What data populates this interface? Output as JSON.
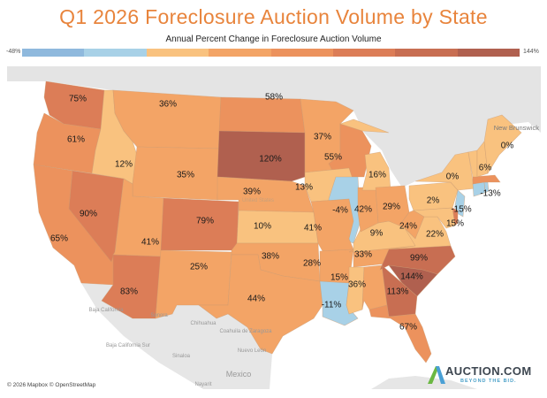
{
  "title": "Q1 2026 Foreclosure Auction Volume by State",
  "legend": {
    "title": "Annual Percent Change in Foreclosure Auction Volume",
    "min_label": "-48%",
    "max_label": "144%",
    "min": -48,
    "max": 144,
    "colors": [
      "#8fb9dd",
      "#a8d1e7",
      "#f9c27f",
      "#f3a466",
      "#ec925d",
      "#dc7d57",
      "#c86e52",
      "#b0604f"
    ]
  },
  "chart_data": {
    "type": "choropleth",
    "unit": "%",
    "values": {
      "WA": 75,
      "OR": 61,
      "CA": 65,
      "NV": 90,
      "ID": 12,
      "MT": 36,
      "WY": 35,
      "UT": 41,
      "AZ": 83,
      "CO": 79,
      "NM": 25,
      "ND": 58,
      "SD": 120,
      "NE": 39,
      "KS": 10,
      "OK": 38,
      "TX": 44,
      "MN": 37,
      "WI": 55,
      "IA": 13,
      "IL": -4,
      "MO": 41,
      "AR": 28,
      "LA": -11,
      "MS": 15,
      "AL": 36,
      "TN": 33,
      "KY": 9,
      "IN": 42,
      "MI": 16,
      "OH": 29,
      "WV": 24,
      "VA": 22,
      "NC": 99,
      "SC": 144,
      "GA": 113,
      "FL": 67,
      "PA": 2,
      "NY": 0,
      "NJ": -15,
      "MD": 15,
      "CT": -13,
      "VT": 6,
      "ME": 0
    },
    "unlabeled_bins": {
      "MA": 4,
      "NH": 2,
      "DE": 5,
      "RI": 1
    }
  },
  "basemap_labels": {
    "us": "United States",
    "nb": "New Brunswick",
    "baja": "Baja California",
    "sonora": "Sonora",
    "chihuahua": "Chihuahua",
    "coahuila": "Coahuila de Zaragoza",
    "bcs": "Baja California Sur",
    "sinaloa": "Sinaloa",
    "nuevo_leon": "Nuevo León",
    "mexico": "Mexico",
    "nayarit": "Nayarit"
  },
  "attribution": "© 2026 Mapbox © OpenStreetMap",
  "logo": {
    "name": "AUCTION.COM",
    "tagline": "BEYOND THE BID."
  }
}
